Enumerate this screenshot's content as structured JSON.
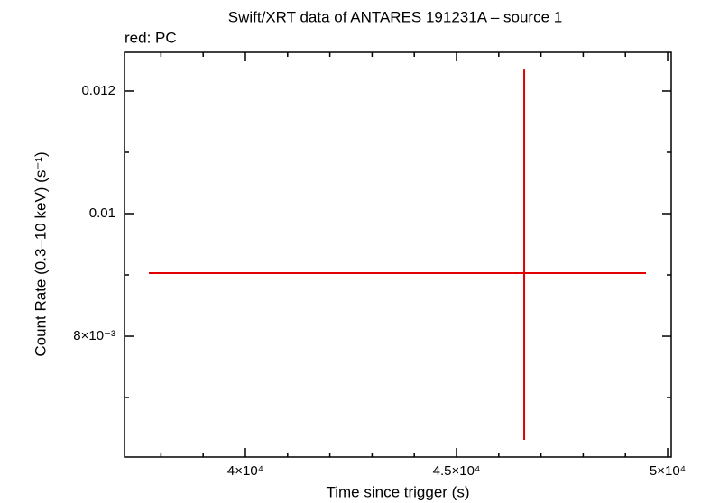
{
  "chart_data": {
    "type": "errorbar",
    "title": "Swift/XRT data of ANTARES 191231A – source 1",
    "annotation": "red: PC",
    "x_label": "Time since trigger (s)",
    "y_label": "Count Rate (0.3–10 keV) (s⁻¹)",
    "xlim": [
      37137,
      50085
    ],
    "ylim": [
      0.00603,
      0.012632
    ],
    "xticks": [
      {
        "value": 40000,
        "label": "4×10⁴"
      },
      {
        "value": 45000,
        "label": "4.5×10⁴"
      },
      {
        "value": 50000,
        "label": "5×10⁴"
      }
    ],
    "xminorticks": [
      38000,
      39000,
      41000,
      42000,
      43000,
      44000,
      46000,
      47000,
      48000,
      49000
    ],
    "yticks": [
      {
        "value": 0.008,
        "label": "8×10⁻³"
      },
      0.01,
      0.012
    ],
    "yminorticks": [
      0.007,
      0.009,
      0.011
    ],
    "series": [
      {
        "color": "#e00000",
        "x": [
          46603
        ],
        "xerr_minus": [
          8889
        ],
        "xerr_plus": [
          2884
        ],
        "values": [
          0.00903
        ],
        "yerr_minus": [
          0.00272
        ],
        "yerr_plus": [
          0.00332
        ]
      }
    ]
  }
}
